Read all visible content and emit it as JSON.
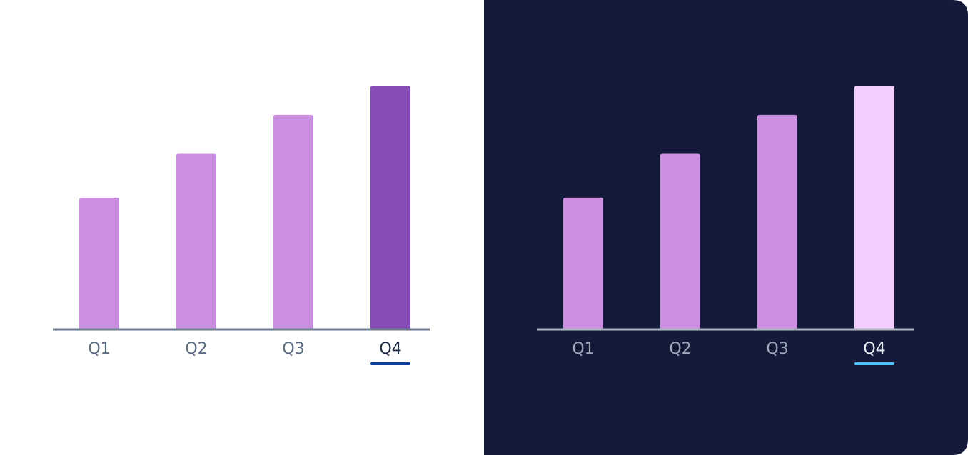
{
  "chart_data": [
    {
      "type": "bar",
      "theme": "light",
      "background": "#ffffff",
      "categories": [
        "Q1",
        "Q2",
        "Q3",
        "Q4"
      ],
      "values": [
        54,
        72,
        88,
        100
      ],
      "colors": [
        "#cb8fe0",
        "#cb8fe0",
        "#cb8fe0",
        "#874db5"
      ],
      "ylim": [
        0,
        100
      ],
      "selected": "Q4",
      "axis_color": "#6b7a8c",
      "label_color": "#5a6b80",
      "selected_label_color": "#1d2b44",
      "underline_color": "#0d3ea0"
    },
    {
      "type": "bar",
      "theme": "dark",
      "background": "#151a3a",
      "categories": [
        "Q1",
        "Q2",
        "Q3",
        "Q4"
      ],
      "values": [
        54,
        72,
        88,
        100
      ],
      "colors": [
        "#cb8fe0",
        "#cb8fe0",
        "#cb8fe0",
        "#f2cdfd"
      ],
      "ylim": [
        0,
        100
      ],
      "selected": "Q4",
      "axis_color": "#b0b8c4",
      "label_color": "#9aa6b8",
      "selected_label_color": "#e8ecf5",
      "underline_color": "#4dc3ff"
    }
  ]
}
